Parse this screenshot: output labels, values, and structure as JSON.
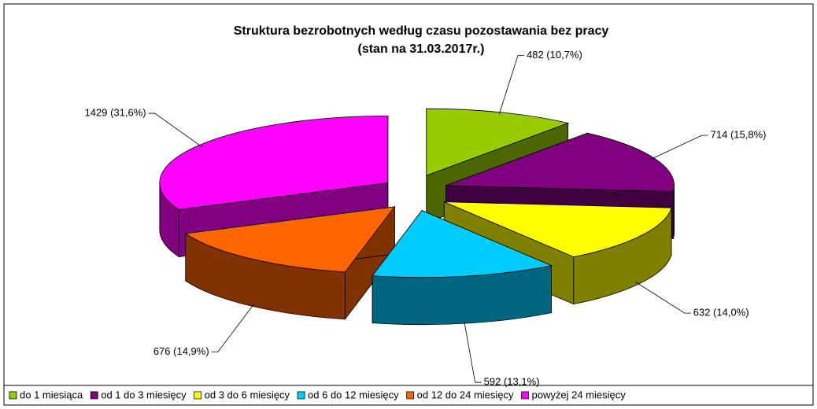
{
  "chart_data": {
    "type": "pie3d",
    "title": "Struktura bezrobotnych według czasu pozostawania bez pracy",
    "subtitle": "(stan na 31.03.2017r.)",
    "categories": [
      "do 1 miesiąca",
      "od 1 do 3 miesięcy",
      "od 3 do 6 miesięcy",
      "od 6 do 12 miesięcy",
      "od 12 do 24 miesięcy",
      "powyżej 24 miesięcy"
    ],
    "values": [
      482,
      714,
      632,
      592,
      676,
      1429
    ],
    "value_labels": [
      "482 (10,7%)",
      "714 (15,8%)",
      "632 (14,0%)",
      "592 (13,1%)",
      "676 (14,9%)",
      "1429 (31,6%)"
    ],
    "colors": [
      "#99cc00",
      "#800080",
      "#ffff00",
      "#00ccff",
      "#ff6600",
      "#ff00ff"
    ],
    "legend": "bottom"
  }
}
